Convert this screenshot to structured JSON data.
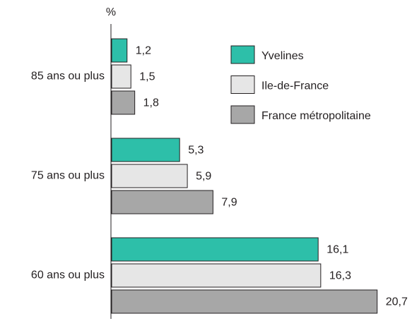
{
  "chart_data": {
    "type": "bar",
    "orientation": "horizontal",
    "y_label": "%",
    "categories": [
      "85 ans ou plus",
      "75 ans ou plus",
      "60 ans ou plus"
    ],
    "series": [
      {
        "name": "Yvelines",
        "color": "#2dbfa9",
        "values": [
          1.2,
          5.3,
          16.1
        ],
        "value_labels": [
          "1,2",
          "5,3",
          "16,1"
        ]
      },
      {
        "name": "Ile-de-France",
        "color": "#e6e6e6",
        "values": [
          1.5,
          5.9,
          16.3
        ],
        "value_labels": [
          "1,5",
          "5,9",
          "16,3"
        ]
      },
      {
        "name": "France métropolitaine",
        "color": "#a7a7a7",
        "values": [
          1.8,
          7.9,
          20.7
        ],
        "value_labels": [
          "1,8",
          "7,9",
          "20,7"
        ]
      }
    ]
  }
}
